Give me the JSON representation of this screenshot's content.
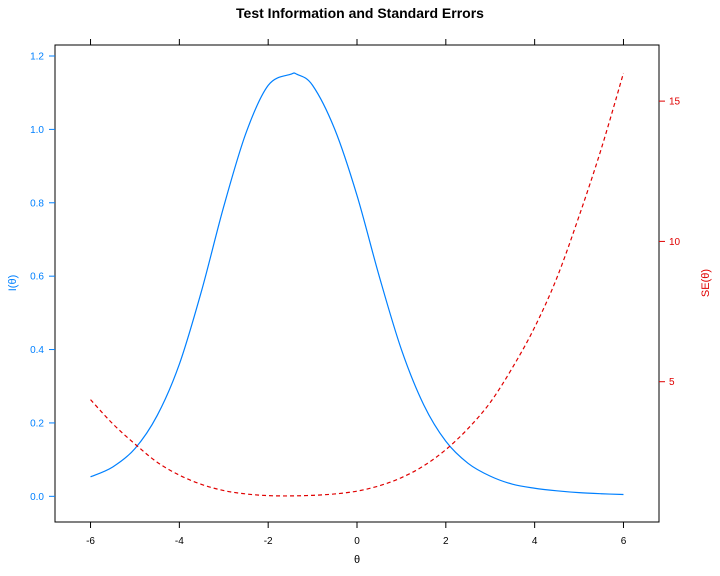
{
  "chart_data": {
    "type": "line",
    "title": "Test Information and Standard Errors",
    "xlabel": "θ",
    "ylabel_left": "I(θ)",
    "ylabel_right": "SE(θ)",
    "xlim": [
      -6.8,
      6.8
    ],
    "ylim_left": [
      -0.07,
      1.23
    ],
    "ylim_right": [
      0.0,
      17.0
    ],
    "x_ticks": [
      -6,
      -4,
      -2,
      0,
      2,
      4,
      6
    ],
    "x_tick_labels": [
      "-6",
      "-4",
      "-2",
      "0",
      "2",
      "4",
      "6"
    ],
    "y_left_ticks": [
      0.0,
      0.2,
      0.4,
      0.6,
      0.8,
      1.0,
      1.2
    ],
    "y_left_tick_labels": [
      "0.0",
      "0.2",
      "0.4",
      "0.6",
      "0.8",
      "1.0",
      "1.2"
    ],
    "y_right_ticks": [
      5,
      10,
      15
    ],
    "y_right_tick_labels": [
      "5",
      "10",
      "15"
    ],
    "grid": false,
    "series": [
      {
        "name": "I(θ)",
        "axis": "left",
        "line_style": "solid",
        "color": "#0080ff",
        "x": [
          -6,
          -5.5,
          -5,
          -4.5,
          -4,
          -3.5,
          -3,
          -2.5,
          -2,
          -1.5,
          -1.35,
          -1,
          -0.5,
          0,
          0.5,
          1,
          1.5,
          2,
          2.5,
          3,
          3.5,
          4,
          4.5,
          5,
          5.5,
          6
        ],
        "y": [
          0.053,
          0.08,
          0.13,
          0.22,
          0.36,
          0.56,
          0.79,
          0.99,
          1.12,
          1.15,
          1.15,
          1.12,
          1.0,
          0.82,
          0.6,
          0.4,
          0.25,
          0.15,
          0.09,
          0.055,
          0.033,
          0.022,
          0.015,
          0.01,
          0.007,
          0.005
        ]
      },
      {
        "name": "SE(θ)",
        "axis": "right",
        "line_style": "dashed",
        "color": "#e00000",
        "x": [
          -6,
          -5.5,
          -5,
          -4.5,
          -4,
          -3.5,
          -3,
          -2.5,
          -2,
          -1.5,
          -1,
          -0.5,
          0,
          0.5,
          1,
          1.5,
          2,
          2.5,
          3,
          3.5,
          4,
          4.5,
          5,
          5.5,
          6
        ],
        "y": [
          4.36,
          3.5,
          2.78,
          2.13,
          1.67,
          1.34,
          1.12,
          1.0,
          0.94,
          0.93,
          0.95,
          1.0,
          1.1,
          1.29,
          1.58,
          2.0,
          2.58,
          3.33,
          4.26,
          5.5,
          6.94,
          8.7,
          10.9,
          13.3,
          16.0
        ]
      }
    ]
  }
}
